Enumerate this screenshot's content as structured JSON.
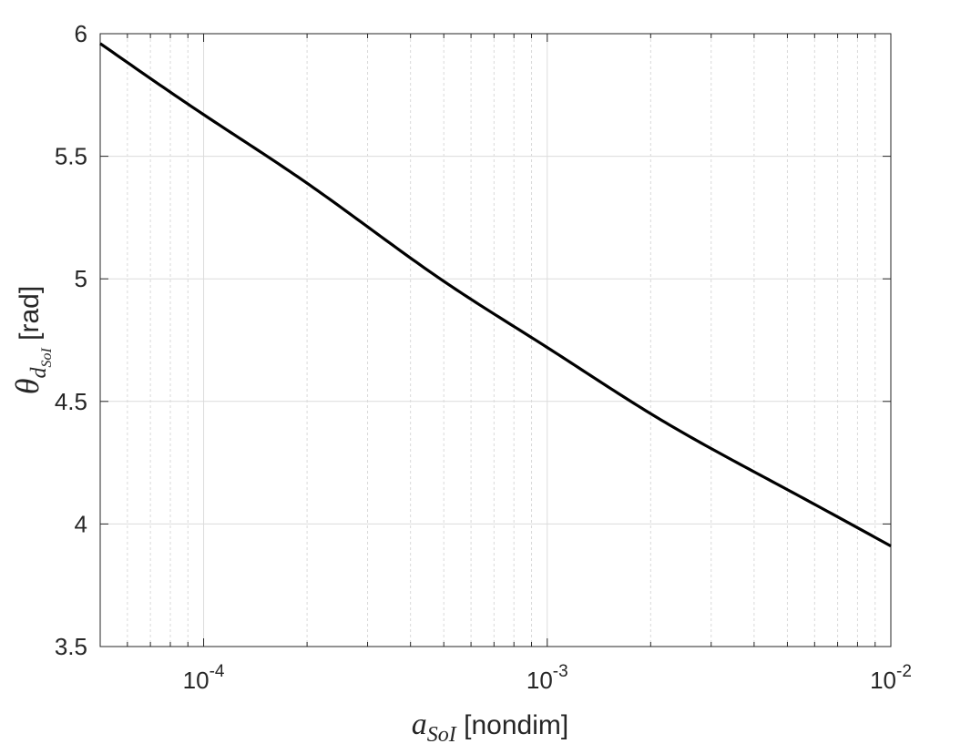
{
  "chart_data": {
    "type": "line",
    "xscale": "log",
    "xlim": [
      5e-05,
      0.01
    ],
    "ylim": [
      3.5,
      6
    ],
    "grid": true,
    "minor_grid": true,
    "xticks": [
      {
        "value": 0.0001,
        "base": "10",
        "exp": "-4"
      },
      {
        "value": 0.001,
        "base": "10",
        "exp": "-3"
      },
      {
        "value": 0.01,
        "base": "10",
        "exp": "-2"
      }
    ],
    "yticks": [
      {
        "value": 3.5,
        "label": "3.5"
      },
      {
        "value": 4,
        "label": "4"
      },
      {
        "value": 4.5,
        "label": "4.5"
      },
      {
        "value": 5,
        "label": "5"
      },
      {
        "value": 5.5,
        "label": "5.5"
      },
      {
        "value": 6,
        "label": "6"
      }
    ],
    "xlabel": {
      "symbol": "a",
      "subscript": "SoI",
      "unit": " [nondim]"
    },
    "ylabel": {
      "symbol": "θ",
      "subscript": "d",
      "subsubscript": "SoI",
      "unit": " [rad]"
    },
    "series": [
      {
        "color": "#000000",
        "x": [
          5e-05,
          0.0001,
          0.0002,
          0.0005,
          0.001,
          0.002,
          0.005,
          0.01
        ],
        "y": [
          5.96,
          5.67,
          5.39,
          4.99,
          4.72,
          4.45,
          4.14,
          3.91
        ]
      }
    ]
  }
}
